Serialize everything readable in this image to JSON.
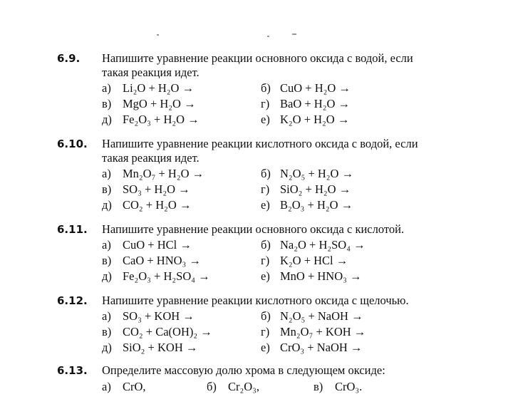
{
  "problems": [
    {
      "number": "6.9.",
      "text": [
        "Напишите уравнение реакции основного оксида с водой, если",
        "такая реакция идет."
      ],
      "options": [
        [
          "а)",
          "Li₂O + H₂O →",
          "б)",
          "CuO + H₂O →"
        ],
        [
          "в)",
          "MgO + H₂O →",
          "г)",
          "BaO + H₂O →"
        ],
        [
          "д)",
          "Fe₂O₃ + H₂O →",
          "е)",
          "K₂O + H₂O →"
        ]
      ]
    },
    {
      "number": "6.10.",
      "text": [
        "Напишите уравнение реакции кислотного оксида с водой, если",
        "такая реакция идет."
      ],
      "options": [
        [
          "а)",
          "Mn₂O₇ + H₂O →",
          "б)",
          "N₂O₅ + H₂O →"
        ],
        [
          "в)",
          "SO₃ + H₂O →",
          "г)",
          "SiO₂ + H₂O →"
        ],
        [
          "д)",
          "CO₂ + H₂O →",
          "е)",
          "B₂O₃ + H₂O →"
        ]
      ]
    },
    {
      "number": "6.11.",
      "text": [
        "Напишите уравнение реакции основного оксида с кислотой."
      ],
      "options": [
        [
          "а)",
          "CuO + HCl →",
          "б)",
          "Na₂O + H₂SO₄ →"
        ],
        [
          "в)",
          "CaO + HNO₃ →",
          "г)",
          "K₂O + HCl →"
        ],
        [
          "д)",
          "Fe₂O₃ + H₂SO₄ →",
          "е)",
          "MnO + HNO₃ →"
        ]
      ]
    },
    {
      "number": "6.12.",
      "text": [
        "Напишите уравнение реакции кислотного оксида с щелочью."
      ],
      "options": [
        [
          "а)",
          "SO₃ + KOH →",
          "б)",
          "N₂O₅ + NaOH →"
        ],
        [
          "в)",
          "CO₂ + Ca(OH)₂ →",
          "г)",
          "Mn₂O₇ + KOH →"
        ],
        [
          "д)",
          "SiO₂ + KOH →",
          "е)",
          "CrO₃ + NaOH →"
        ]
      ]
    },
    {
      "number": "6.13.",
      "text": [
        "Определите массовую долю хрома в следующем оксиде:"
      ],
      "options3": [
        "а)",
        "CrO,",
        "б)",
        "Cr₂O₃,",
        "в)",
        "CrO₃."
      ]
    }
  ]
}
